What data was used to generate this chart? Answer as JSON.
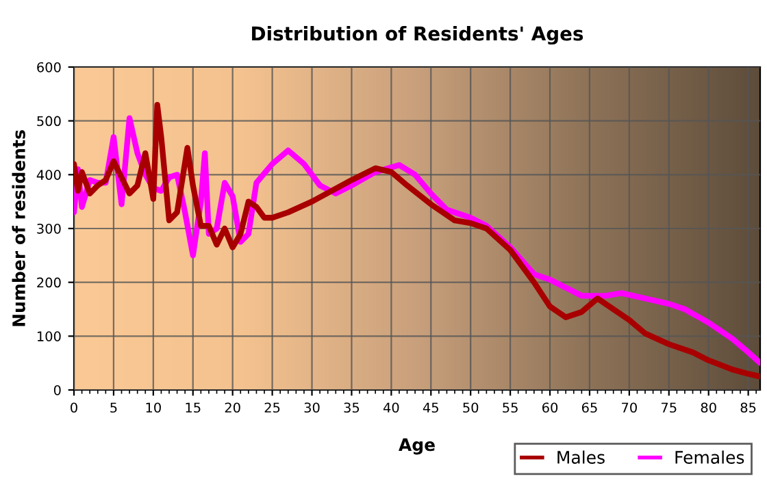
{
  "chart_data": {
    "type": "line",
    "title": "Distribution of Residents' Ages",
    "xlabel": "Age",
    "ylabel": "Number of residents",
    "xlim": [
      0,
      86.5
    ],
    "ylim": [
      0,
      600
    ],
    "xticks": [
      0,
      5,
      10,
      15,
      20,
      25,
      30,
      35,
      40,
      45,
      50,
      55,
      60,
      65,
      70,
      75,
      80,
      85
    ],
    "yticks": [
      0,
      100,
      200,
      300,
      400,
      500,
      600
    ],
    "grid": true,
    "legend": "bottom right",
    "marker": "none",
    "line_style": "solid",
    "series": [
      {
        "name": "Males",
        "color": "#a80000",
        "x": [
          0,
          0.5,
          1,
          2,
          3,
          4,
          5,
          6,
          7,
          8,
          9,
          10,
          10.5,
          11,
          12,
          13,
          14.3,
          15,
          16,
          17,
          18,
          19,
          20,
          21,
          22,
          23,
          24,
          25,
          27,
          30,
          35,
          38,
          40,
          42,
          45,
          48,
          50,
          52,
          55,
          58,
          60,
          62,
          64,
          66,
          68,
          70,
          72,
          75,
          78,
          80,
          83,
          85,
          86.5
        ],
        "values": [
          420,
          370,
          405,
          365,
          380,
          390,
          425,
          395,
          365,
          380,
          440,
          355,
          530,
          470,
          315,
          330,
          450,
          380,
          305,
          305,
          270,
          300,
          265,
          290,
          350,
          340,
          320,
          320,
          330,
          350,
          390,
          412,
          405,
          380,
          345,
          315,
          310,
          300,
          260,
          200,
          155,
          135,
          145,
          170,
          150,
          130,
          105,
          85,
          70,
          55,
          38,
          30,
          25
        ]
      },
      {
        "name": "Females",
        "color": "#ff00ff",
        "x": [
          0,
          0.5,
          1,
          2,
          3,
          4,
          5,
          6,
          7,
          8,
          9,
          10,
          11,
          12,
          13,
          14,
          15,
          16,
          16.5,
          17,
          18,
          19,
          20,
          21,
          22,
          23,
          25,
          27,
          29,
          31,
          33,
          35,
          38,
          41,
          43,
          45,
          47,
          50,
          52,
          55,
          58,
          60,
          62,
          64,
          67,
          69,
          72,
          75,
          77,
          80,
          83,
          85,
          86.5
        ],
        "values": [
          330,
          410,
          340,
          390,
          385,
          385,
          470,
          345,
          505,
          440,
          400,
          375,
          370,
          395,
          400,
          330,
          250,
          350,
          440,
          290,
          300,
          385,
          360,
          275,
          290,
          385,
          420,
          445,
          420,
          380,
          365,
          380,
          405,
          418,
          400,
          365,
          335,
          320,
          305,
          265,
          215,
          205,
          190,
          175,
          175,
          180,
          170,
          160,
          150,
          125,
          95,
          70,
          50
        ]
      }
    ]
  }
}
